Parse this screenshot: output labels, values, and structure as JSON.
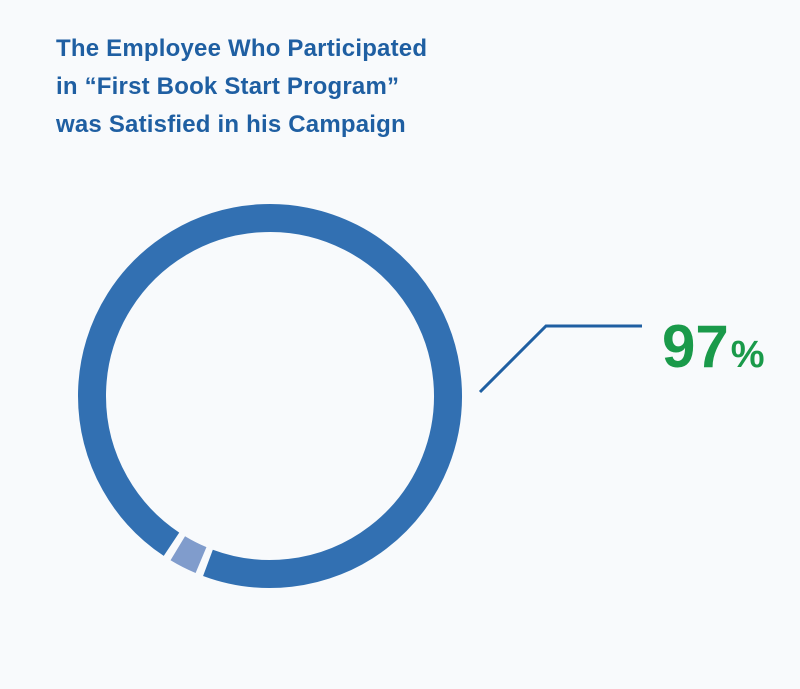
{
  "header": {
    "title_lines": [
      "The Employee Who Participated",
      "in “First Book Start Program”",
      "was Satisfied in his Campaign"
    ]
  },
  "chart_data": {
    "type": "pie",
    "style": "donut",
    "labels": [
      "",
      ""
    ],
    "values": [
      97,
      3
    ],
    "colors": [
      "#3270b2",
      "#809ccc"
    ],
    "annotation": {
      "value": "97",
      "unit": "%",
      "color": "#1a9a4a",
      "leader_color": "#1f5fa2"
    }
  }
}
